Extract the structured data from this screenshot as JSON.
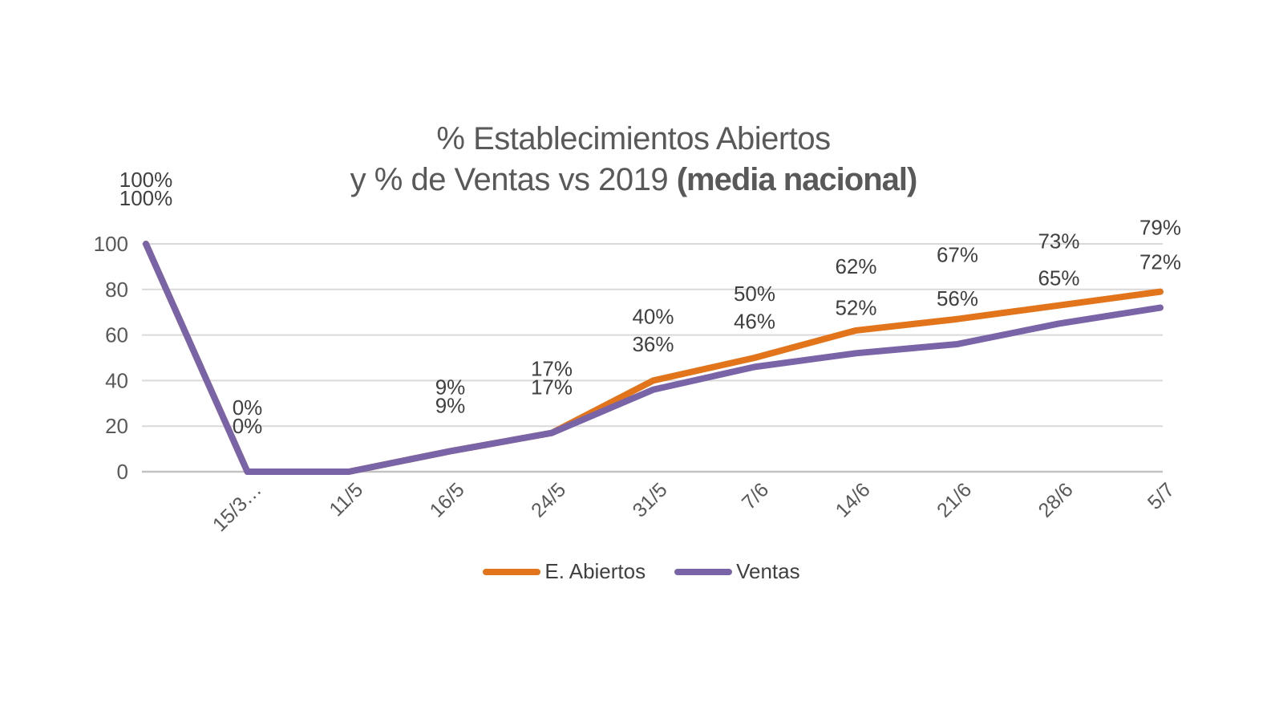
{
  "chart_data": {
    "type": "line",
    "title_line1": "% Establecimientos Abiertos",
    "title_line2_regular": "y % de Ventas vs 2019 ",
    "title_line2_bold": "(media nacional)",
    "categories": [
      "",
      "15/3…",
      "11/5",
      "16/5",
      "24/5",
      "31/5",
      "7/6",
      "14/6",
      "21/6",
      "28/6",
      "5/7"
    ],
    "series": [
      {
        "name": "E. Abiertos",
        "color": "#E2751B",
        "values": [
          100,
          0,
          0,
          9,
          17,
          40,
          50,
          62,
          67,
          73,
          79
        ],
        "point_labels": [
          "100%",
          "0%",
          null,
          "9%",
          "17%",
          "40%",
          "50%",
          "62%",
          "67%",
          "73%",
          "79%"
        ]
      },
      {
        "name": "Ventas",
        "color": "#7A64A8",
        "values": [
          100,
          0,
          0,
          9,
          17,
          36,
          46,
          52,
          56,
          65,
          72
        ],
        "point_labels": [
          "100%",
          "0%",
          null,
          "9%",
          "17%",
          "36%",
          "46%",
          "52%",
          "56%",
          "65%",
          "72%"
        ]
      }
    ],
    "y_tick_labels": [
      "0",
      "20",
      "40",
      "60",
      "80",
      "100"
    ],
    "ylim": [
      0,
      100
    ],
    "ytick_step": 20,
    "grid": true,
    "legend_position": "bottom",
    "colors": {
      "gridline": "#D9D9D9",
      "axis_line": "#C2C2C2",
      "axis_text": "#595959",
      "data_label_text": "#404040",
      "title_text": "#595959",
      "background": "#FFFFFF"
    }
  }
}
